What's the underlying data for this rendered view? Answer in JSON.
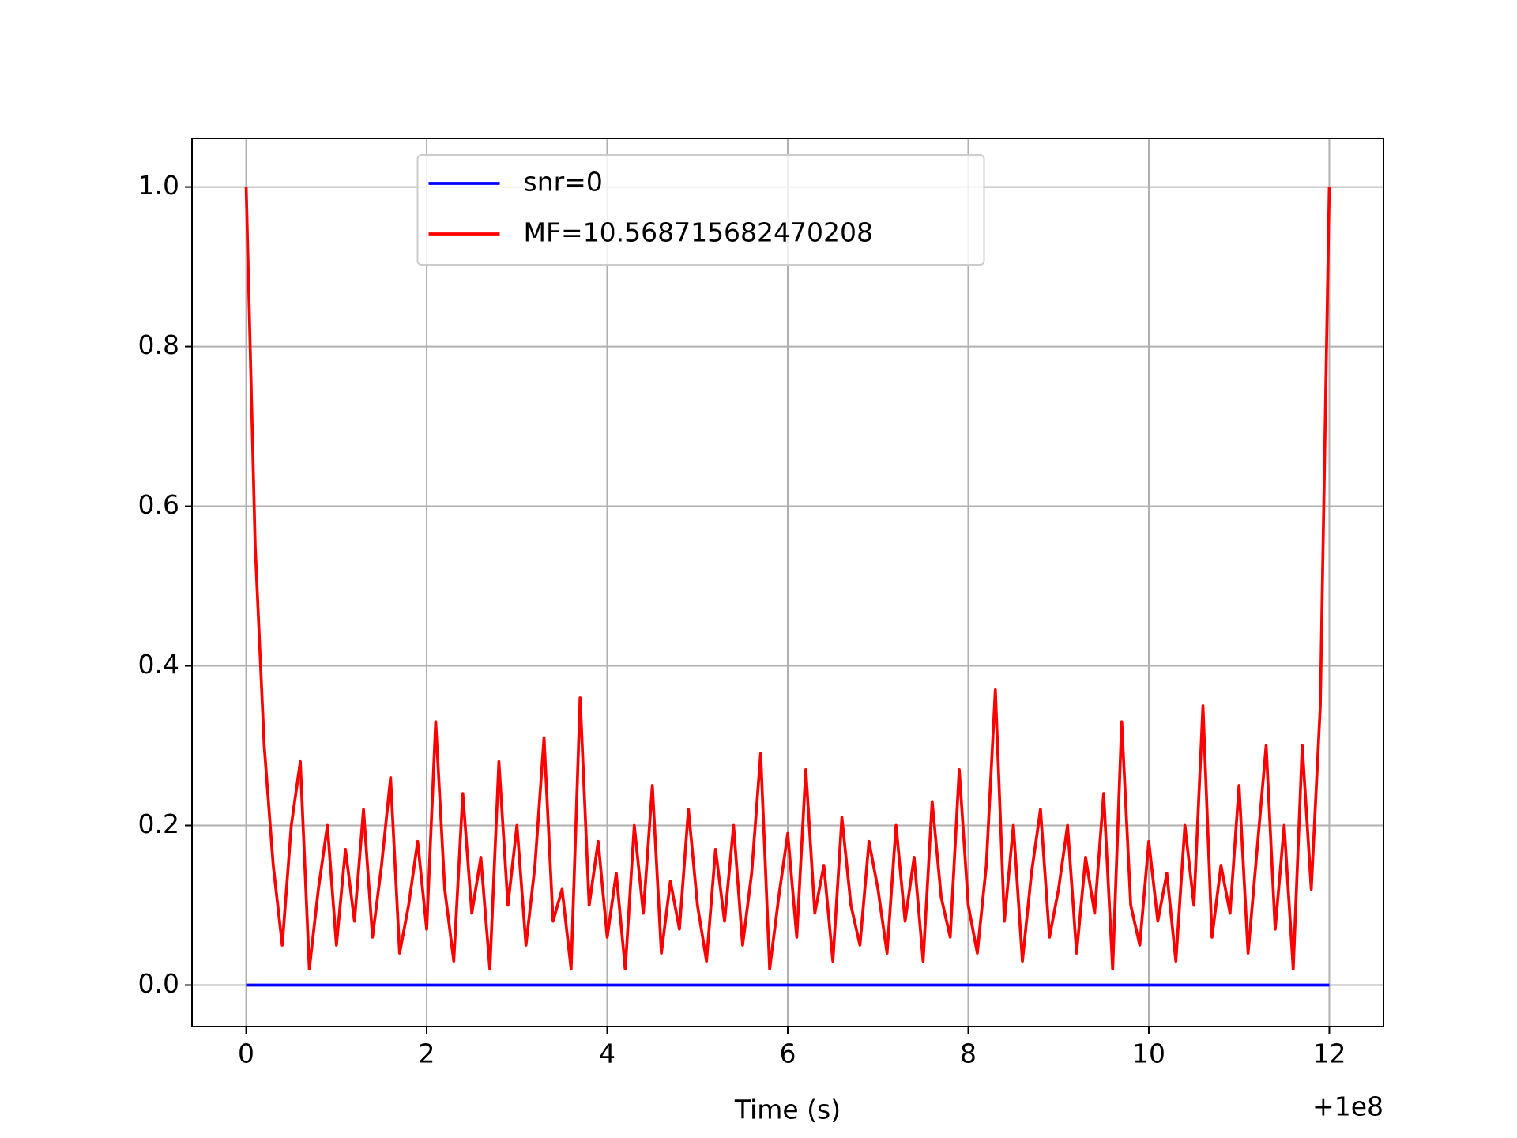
{
  "chart_data": {
    "type": "line",
    "xlabel": "Time (s)",
    "x_offset_label": "+1e8",
    "xlim": [
      -0.6,
      12.6
    ],
    "xticks": [
      0,
      2,
      4,
      6,
      8,
      10,
      12
    ],
    "ylim": [
      -0.052,
      1.061
    ],
    "yticks": [
      {
        "value": 0,
        "label": "0.0"
      },
      0.2,
      0.4,
      0.6,
      0.8,
      {
        "value": 1,
        "label": "1.0"
      }
    ],
    "grid": true,
    "legend": "upper center",
    "series": [
      {
        "name": "snr=0",
        "color": "#0000ff",
        "x": [
          0,
          12
        ],
        "values": [
          0,
          0
        ]
      },
      {
        "name": "MF=10.568715682470208",
        "color": "#ff0000",
        "x": [
          0,
          0.1,
          0.2,
          0.3,
          0.4,
          0.5,
          0.6,
          0.7,
          0.8,
          0.9,
          1,
          1.1,
          1.2,
          1.3,
          1.4,
          1.5,
          1.6,
          1.7,
          1.8,
          1.9,
          2,
          2.1,
          2.2,
          2.3,
          2.4,
          2.5,
          2.6,
          2.7,
          2.8,
          2.9,
          3,
          3.1,
          3.2,
          3.3,
          3.4,
          3.5,
          3.6,
          3.7,
          3.8,
          3.9,
          4,
          4.1,
          4.2,
          4.3,
          4.4,
          4.5,
          4.6,
          4.7,
          4.8,
          4.9,
          5,
          5.1,
          5.2,
          5.3,
          5.4,
          5.5,
          5.6,
          5.7,
          5.8,
          5.9,
          6,
          6.1,
          6.2,
          6.3,
          6.4,
          6.5,
          6.6,
          6.7,
          6.8,
          6.9,
          7,
          7.1,
          7.2,
          7.3,
          7.4,
          7.5,
          7.6,
          7.7,
          7.8,
          7.9,
          8,
          8.1,
          8.2,
          8.3,
          8.4,
          8.5,
          8.6,
          8.7,
          8.8,
          8.9,
          9,
          9.1,
          9.2,
          9.3,
          9.4,
          9.5,
          9.6,
          9.7,
          9.8,
          9.9,
          10,
          10.1,
          10.2,
          10.3,
          10.4,
          10.5,
          10.6,
          10.7,
          10.8,
          10.9,
          11,
          11.1,
          11.2,
          11.3,
          11.4,
          11.5,
          11.6,
          11.7,
          11.8,
          11.9,
          12
        ],
        "values": [
          1.0,
          0.55,
          0.3,
          0.15,
          0.05,
          0.2,
          0.28,
          0.02,
          0.12,
          0.2,
          0.05,
          0.17,
          0.08,
          0.22,
          0.06,
          0.15,
          0.26,
          0.04,
          0.1,
          0.18,
          0.07,
          0.33,
          0.12,
          0.03,
          0.24,
          0.09,
          0.16,
          0.02,
          0.28,
          0.1,
          0.2,
          0.05,
          0.15,
          0.31,
          0.08,
          0.12,
          0.02,
          0.36,
          0.1,
          0.18,
          0.06,
          0.14,
          0.02,
          0.2,
          0.09,
          0.25,
          0.04,
          0.13,
          0.07,
          0.22,
          0.1,
          0.03,
          0.17,
          0.08,
          0.2,
          0.05,
          0.14,
          0.29,
          0.02,
          0.11,
          0.19,
          0.06,
          0.27,
          0.09,
          0.15,
          0.03,
          0.21,
          0.1,
          0.05,
          0.18,
          0.12,
          0.04,
          0.2,
          0.08,
          0.16,
          0.03,
          0.23,
          0.11,
          0.06,
          0.27,
          0.1,
          0.04,
          0.15,
          0.37,
          0.08,
          0.2,
          0.03,
          0.14,
          0.22,
          0.06,
          0.12,
          0.2,
          0.04,
          0.16,
          0.09,
          0.24,
          0.02,
          0.33,
          0.1,
          0.05,
          0.18,
          0.08,
          0.14,
          0.03,
          0.2,
          0.1,
          0.35,
          0.06,
          0.15,
          0.09,
          0.25,
          0.04,
          0.17,
          0.3,
          0.07,
          0.2,
          0.02,
          0.3,
          0.12,
          0.35,
          1.0
        ]
      }
    ]
  }
}
